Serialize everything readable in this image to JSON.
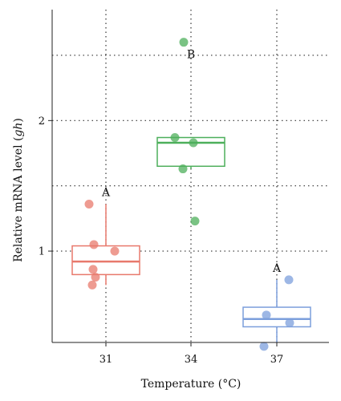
{
  "chart_data": {
    "type": "box",
    "xlabel": "Temperature (°C)",
    "ylabel": "Relative mRNA level (gh)",
    "categories": [
      "31",
      "34",
      "37"
    ],
    "ylim": [
      0.3,
      2.85
    ],
    "yticks": [
      1,
      2
    ],
    "ytick_labels": [
      "1",
      "2"
    ],
    "grid": true,
    "groups": [
      {
        "category": "31",
        "color": "#e8796c",
        "points": [
          1.36,
          1.05,
          1.0,
          0.86,
          0.8,
          0.74
        ],
        "box": {
          "min": 0.74,
          "q1": 0.82,
          "median": 0.92,
          "q3": 1.04,
          "max": 1.36
        },
        "annotation": "A"
      },
      {
        "category": "34",
        "color": "#4daf5b",
        "points": [
          2.6,
          1.87,
          1.83,
          1.63,
          1.23
        ],
        "box": {
          "min": 1.63,
          "q1": 1.65,
          "median": 1.83,
          "q3": 1.87,
          "max": 1.87
        },
        "annotation": "B"
      },
      {
        "category": "37",
        "color": "#7c9fdc",
        "points": [
          0.78,
          0.51,
          0.45,
          0.27
        ],
        "box": {
          "min": 0.3,
          "q1": 0.42,
          "median": 0.48,
          "q3": 0.57,
          "max": 0.78
        },
        "annotation": "A"
      }
    ]
  }
}
